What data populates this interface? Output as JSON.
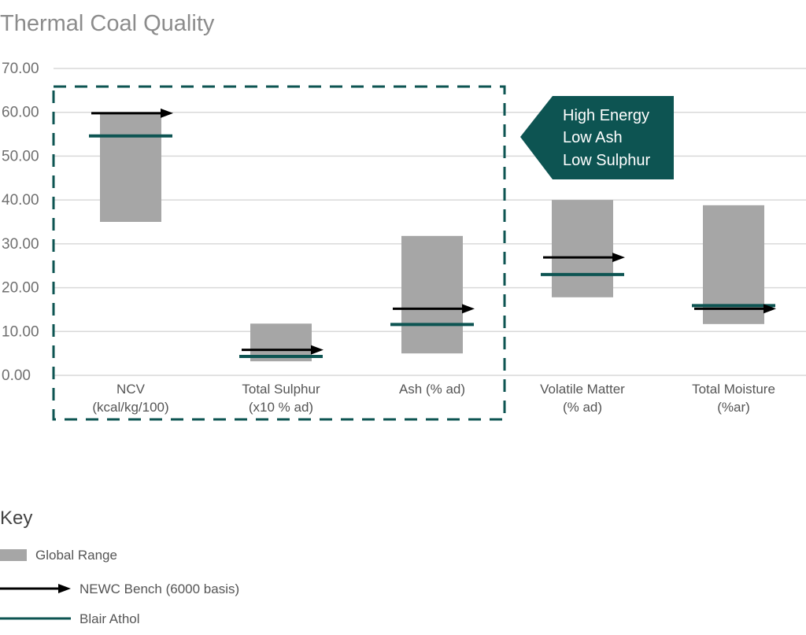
{
  "chart_data": {
    "type": "bar",
    "title": "Thermal Coal Quality",
    "ylim": [
      0,
      70
    ],
    "yticks": [
      "0.00",
      "10.00",
      "20.00",
      "30.00",
      "40.00",
      "50.00",
      "60.00",
      "70.00"
    ],
    "grid": true,
    "categories": [
      [
        "NCV",
        "(kcal/kg/100)"
      ],
      [
        "Total Sulphur",
        "(x10 % ad)"
      ],
      [
        "Ash (% ad)"
      ],
      [
        "Volatile Matter",
        "(% ad)"
      ],
      [
        "Total Moisture",
        "(%ar)"
      ]
    ],
    "series": [
      {
        "name": "Global Range",
        "kind": "range",
        "color": "#a6a6a6",
        "values": [
          [
            35.0,
            59.8
          ],
          [
            3.2,
            11.8
          ],
          [
            5.0,
            31.8
          ],
          [
            17.8,
            40.0
          ],
          [
            11.7,
            38.8
          ]
        ]
      },
      {
        "name": "NEWC Bench (6000 basis)",
        "kind": "arrow",
        "color": "#000000",
        "values": [
          59.8,
          5.8,
          15.2,
          26.9,
          15.2
        ]
      },
      {
        "name": "Blair Athol",
        "kind": "line",
        "color": "#0d5452",
        "values": [
          54.6,
          4.3,
          11.6,
          23.0,
          15.9
        ]
      }
    ],
    "callout": {
      "lines": [
        "High Energy",
        "Low Ash",
        "Low Sulphur"
      ],
      "color": "#0d5452"
    },
    "key": {
      "title": "Key"
    }
  }
}
